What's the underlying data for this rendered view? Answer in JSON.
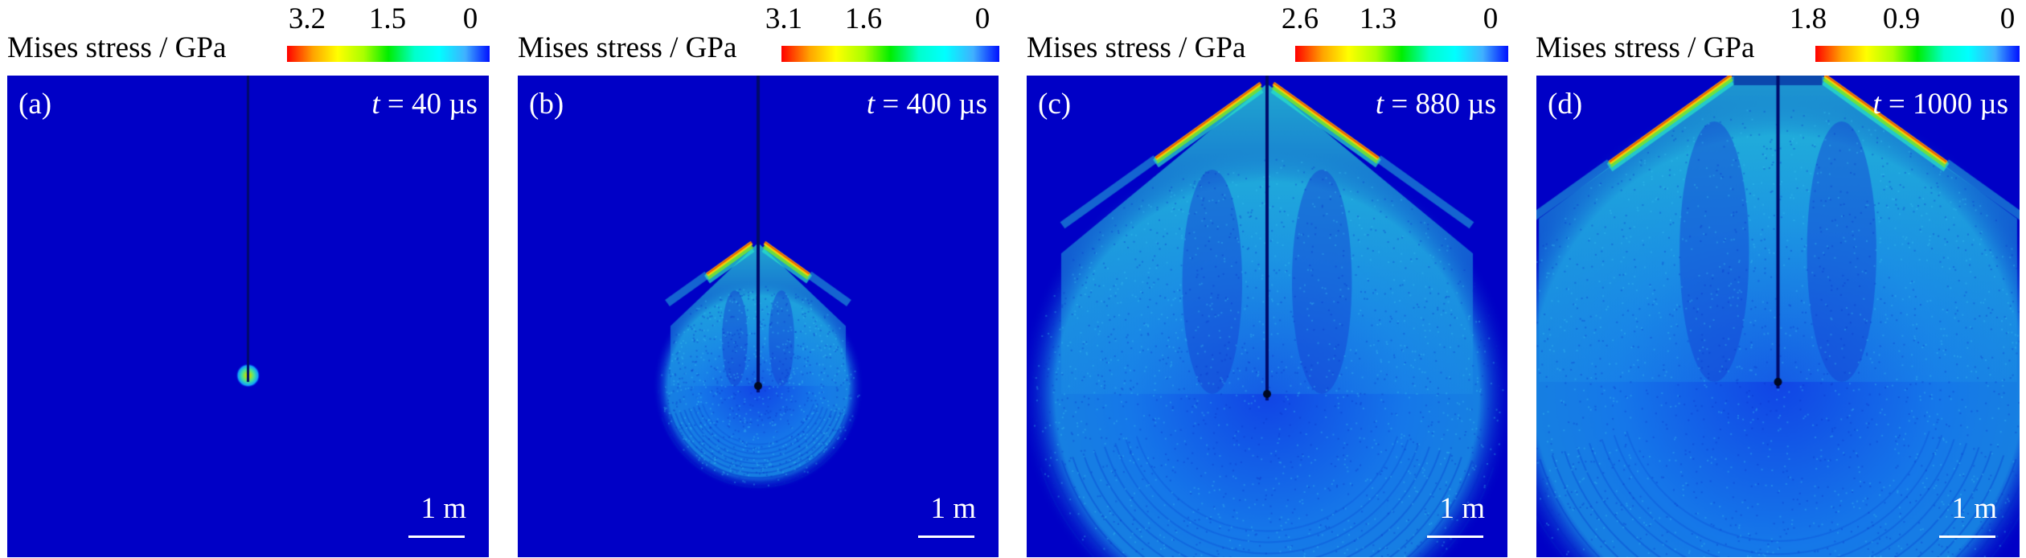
{
  "figure": {
    "colorbar_title": "Mises stress / GPa",
    "colormap": [
      "#ff0000",
      "#ffa500",
      "#ffff00",
      "#a8ff00",
      "#00ee00",
      "#00ffcc",
      "#00ffff",
      "#40b0ff",
      "#0010ff"
    ],
    "background_color": "#0000c6",
    "rod_color": "#000a6a",
    "scale_bar_label": "1 m",
    "panels": [
      {
        "label": "(a)",
        "time_var": "t",
        "time_text": " = 40 µs",
        "time_us": 40,
        "colorbar_ticks": [
          "3.2",
          "1.5",
          "0"
        ],
        "colorbar_max_gpa": 3.2,
        "colorbar_mid_gpa": 1.5,
        "colorbar_min_gpa": 0,
        "wave_stage": 0.05
      },
      {
        "label": "(b)",
        "time_var": "t",
        "time_text": " = 400 µs",
        "time_us": 400,
        "colorbar_ticks": [
          "3.1",
          "1.6",
          "0"
        ],
        "colorbar_max_gpa": 3.1,
        "colorbar_mid_gpa": 1.6,
        "colorbar_min_gpa": 0,
        "wave_stage": 0.45
      },
      {
        "label": "(c)",
        "time_var": "t",
        "time_text": " = 880 µs",
        "time_us": 880,
        "colorbar_ticks": [
          "2.6",
          "1.3",
          "0"
        ],
        "colorbar_max_gpa": 2.6,
        "colorbar_mid_gpa": 1.3,
        "colorbar_min_gpa": 0,
        "wave_stage": 0.88
      },
      {
        "label": "(d)",
        "time_var": "t",
        "time_text": " = 1000 µs",
        "time_us": 1000,
        "colorbar_ticks": [
          "1.8",
          "0.9",
          "0"
        ],
        "colorbar_max_gpa": 1.8,
        "colorbar_mid_gpa": 0.9,
        "colorbar_min_gpa": 0,
        "wave_stage": 1.0
      }
    ]
  }
}
